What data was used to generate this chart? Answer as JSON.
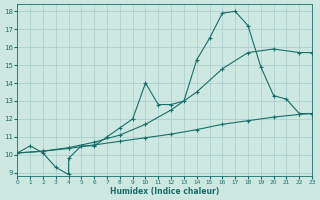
{
  "xlabel": "Humidex (Indice chaleur)",
  "bg_color": "#cce8e0",
  "grid_color": "#a8cccc",
  "line_color": "#1a6e6a",
  "xlim": [
    0,
    23
  ],
  "ylim": [
    8.8,
    18.4
  ],
  "xticks": [
    0,
    1,
    2,
    3,
    4,
    5,
    6,
    7,
    8,
    9,
    10,
    11,
    12,
    13,
    14,
    15,
    16,
    17,
    18,
    19,
    20,
    21,
    22,
    23
  ],
  "yticks": [
    9,
    10,
    11,
    12,
    13,
    14,
    15,
    16,
    17,
    18
  ],
  "line1_x": [
    0,
    1,
    2,
    3,
    4,
    4,
    5,
    6,
    7,
    8,
    9,
    10,
    11,
    12,
    13,
    14,
    15,
    16,
    17,
    18,
    19,
    20,
    21,
    22,
    23
  ],
  "line1_y": [
    10.1,
    10.5,
    10.1,
    9.3,
    8.9,
    9.8,
    10.5,
    10.5,
    11.0,
    11.5,
    12.0,
    14.0,
    12.8,
    12.8,
    13.0,
    15.3,
    16.5,
    17.9,
    18.0,
    17.2,
    14.9,
    13.3,
    13.1,
    12.3,
    12.3
  ],
  "line2_x": [
    0,
    2,
    4,
    6,
    8,
    10,
    12,
    14,
    16,
    18,
    20,
    22,
    23
  ],
  "line2_y": [
    10.1,
    10.2,
    10.4,
    10.7,
    11.1,
    11.7,
    12.5,
    13.5,
    14.8,
    15.7,
    15.9,
    15.7,
    15.7
  ],
  "line3_x": [
    0,
    2,
    4,
    6,
    8,
    10,
    12,
    14,
    16,
    18,
    20,
    22,
    23
  ],
  "line3_y": [
    10.1,
    10.2,
    10.35,
    10.55,
    10.75,
    10.95,
    11.15,
    11.4,
    11.7,
    11.9,
    12.1,
    12.25,
    12.3
  ]
}
